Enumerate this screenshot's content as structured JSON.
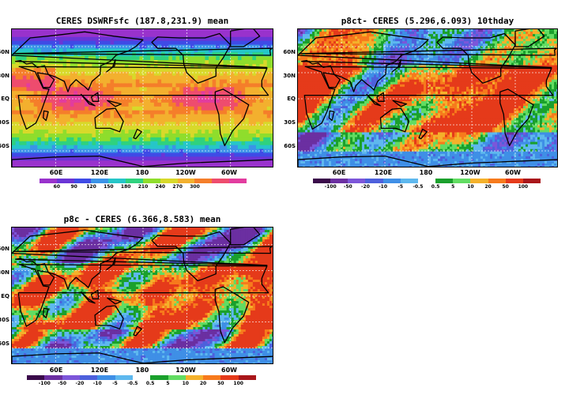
{
  "panels": [
    {
      "title": "CERES DSWRFsfc (187.8,231.9) mean",
      "kind": "mean",
      "lat_labels": [
        "60N",
        "30N",
        "EQ",
        "30S",
        "60S"
      ],
      "lon_labels": [
        "60E",
        "120E",
        "180",
        "120W",
        "60W"
      ],
      "colorbar_labels": [
        "60",
        "90",
        "120",
        "150",
        "180",
        "210",
        "240",
        "270",
        "300"
      ],
      "colorbar_colors": [
        "#9932cc",
        "#6a35d6",
        "#3f4be6",
        "#3a93e8",
        "#26c6c8",
        "#2fd27e",
        "#8fdd2c",
        "#d8d92a",
        "#f3b02e",
        "#f57e2a",
        "#ee4c6e",
        "#e23c9f"
      ]
    },
    {
      "title": "p8ct- CERES (5.296,6.093) 10thday",
      "kind": "diff",
      "lat_labels": [
        "60N",
        "30N",
        "EQ",
        "30S",
        "60S"
      ],
      "lon_labels": [
        "60E",
        "120E",
        "180",
        "120W",
        "60W"
      ],
      "colorbar_labels": [
        "-100",
        "-50",
        "-20",
        "-10",
        "-5",
        "-0.5",
        "0.5",
        "5",
        "10",
        "20",
        "50",
        "100"
      ],
      "colorbar_colors": [
        "#3a0a4a",
        "#6b2fa1",
        "#7c56d9",
        "#4d60dc",
        "#3f8fe6",
        "#5eb8ee",
        "#ffffff",
        "#1aa02c",
        "#62dc62",
        "#f4b12b",
        "#f77a1c",
        "#e53a1a",
        "#a9161a"
      ]
    },
    {
      "title": "p8c - CERES (6.366,8.583) mean",
      "kind": "diff",
      "lat_labels": [
        "60N",
        "30N",
        "EQ",
        "30S",
        "60S"
      ],
      "lon_labels": [
        "60E",
        "120E",
        "180",
        "120W",
        "60W"
      ],
      "colorbar_labels": [
        "-100",
        "-50",
        "-20",
        "-10",
        "-5",
        "-0.5",
        "0.5",
        "5",
        "10",
        "20",
        "50",
        "100"
      ],
      "colorbar_colors": [
        "#3a0a4a",
        "#6b2fa1",
        "#7c56d9",
        "#4d60dc",
        "#3f8fe6",
        "#5eb8ee",
        "#ffffff",
        "#1aa02c",
        "#62dc62",
        "#f4b12b",
        "#f77a1c",
        "#e53a1a",
        "#a9161a"
      ]
    }
  ]
}
